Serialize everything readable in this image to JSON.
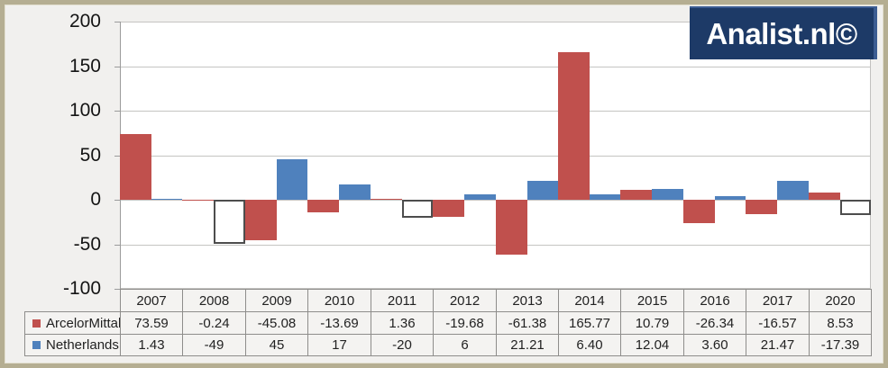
{
  "logo": {
    "text": "Analist.nl©"
  },
  "colors": {
    "series_red": "#c0504d",
    "series_blue": "#4f81bd",
    "logo_bg": "#1d3a67",
    "frame_border": "#b5ae92",
    "inverted_bar_border": "#4d4d4d"
  },
  "chart_data": {
    "type": "bar",
    "title": "",
    "categories": [
      "2007",
      "2008",
      "2009",
      "2010",
      "2011",
      "2012",
      "2013",
      "2014",
      "2015",
      "2016",
      "2017",
      "2020"
    ],
    "series": [
      {
        "name": "ArcelorMittal",
        "color": "#c0504d",
        "invert_if_negative": false,
        "values": [
          73.59,
          -0.24,
          -45.08,
          -13.69,
          1.36,
          -19.68,
          -61.38,
          165.77,
          10.79,
          -26.34,
          -16.57,
          8.53
        ],
        "display": [
          "73.59",
          "-0.24",
          "-45.08",
          "-13.69",
          "1.36",
          "-19.68",
          "-61.38",
          "165.77",
          "10.79",
          "-26.34",
          "-16.57",
          "8.53"
        ]
      },
      {
        "name": "Netherlands",
        "color": "#4f81bd",
        "invert_if_negative": true,
        "values": [
          1.43,
          -49,
          45,
          17,
          -20,
          6,
          21.21,
          6.4,
          12.04,
          3.6,
          21.47,
          -17.39
        ],
        "display": [
          "1.43",
          "-49",
          "45",
          "17",
          "-20",
          "6",
          "21.21",
          "6.40",
          "12.04",
          "3.60",
          "21.47",
          "-17.39"
        ]
      }
    ],
    "ylim": [
      -100,
      200
    ],
    "yticks": [
      200,
      150,
      100,
      50,
      0,
      -50,
      -100
    ],
    "ytick_labels": [
      "200",
      "150",
      "100",
      "50",
      "0",
      "-50",
      "-100"
    ],
    "grid": true,
    "legend_position": "left-of-data-table",
    "bar_gap": 0
  }
}
